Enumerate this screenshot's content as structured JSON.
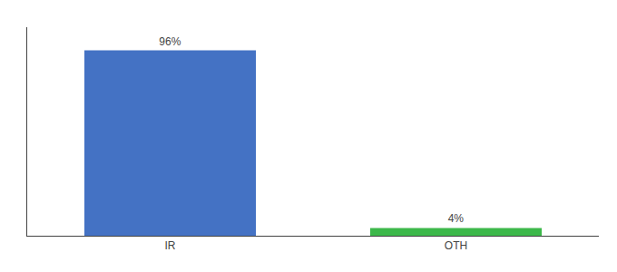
{
  "chart_data": {
    "type": "bar",
    "categories": [
      "IR",
      "OTH"
    ],
    "values": [
      96,
      4
    ],
    "colors": [
      "#4472c4",
      "#3cb84a"
    ],
    "data_labels": true,
    "value_labels": [
      "96%",
      "4%"
    ],
    "ylim": [
      0,
      108
    ],
    "tick_labels": "x",
    "grid": false
  }
}
